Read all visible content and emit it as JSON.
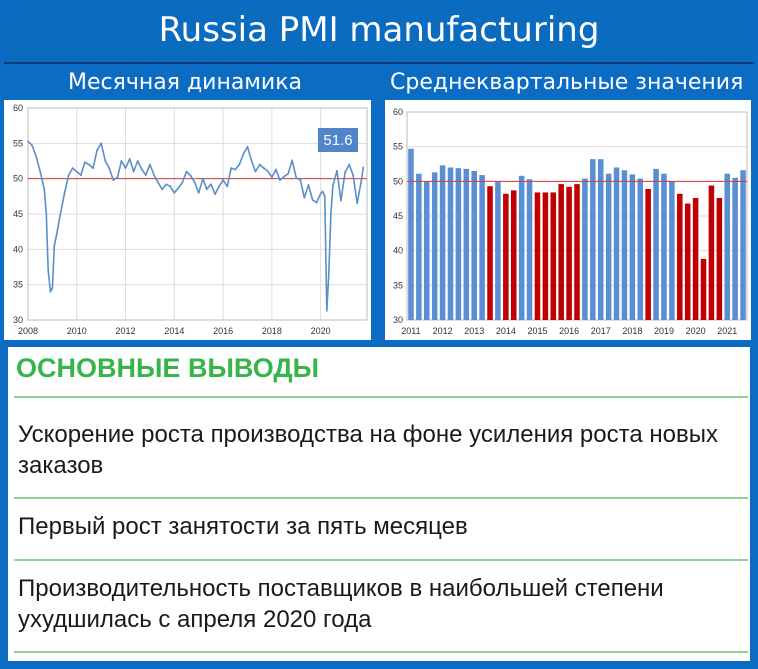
{
  "header": {
    "title": "Russia PMI manufacturing",
    "left_subtitle": "Месячная динамика",
    "right_subtitle": "Среднеквартальные значения"
  },
  "colors": {
    "line": "#5a8fc8",
    "reference_line": "#d43b3b",
    "bar_above_50": "#5b8fd4",
    "bar_below_50": "#c00000",
    "label_box": "#4f86c9",
    "heading": "#37b44a"
  },
  "chart_data": [
    {
      "type": "line",
      "title": "",
      "xlabel": "",
      "ylabel": "",
      "xlim": [
        2008,
        2021.9
      ],
      "ylim": [
        30,
        60
      ],
      "x_ticks": [
        "2008",
        "2010",
        "2012",
        "2014",
        "2016",
        "2018",
        "2020"
      ],
      "y_ticks": [
        "30",
        "35",
        "40",
        "45",
        "50",
        "55",
        "60"
      ],
      "reference_line": 50,
      "last_value_label": "51.6",
      "grid": true,
      "x": [
        2008.0,
        2008.17,
        2008.33,
        2008.5,
        2008.67,
        2008.75,
        2008.83,
        2008.92,
        2009.0,
        2009.08,
        2009.17,
        2009.33,
        2009.5,
        2009.67,
        2009.83,
        2010.0,
        2010.17,
        2010.33,
        2010.5,
        2010.67,
        2010.83,
        2011.0,
        2011.17,
        2011.33,
        2011.5,
        2011.67,
        2011.83,
        2012.0,
        2012.17,
        2012.33,
        2012.5,
        2012.67,
        2012.83,
        2013.0,
        2013.17,
        2013.33,
        2013.5,
        2013.67,
        2013.83,
        2014.0,
        2014.17,
        2014.33,
        2014.5,
        2014.67,
        2014.83,
        2015.0,
        2015.17,
        2015.33,
        2015.5,
        2015.67,
        2015.83,
        2016.0,
        2016.17,
        2016.33,
        2016.5,
        2016.67,
        2016.83,
        2017.0,
        2017.17,
        2017.33,
        2017.5,
        2017.67,
        2017.83,
        2018.0,
        2018.17,
        2018.33,
        2018.5,
        2018.67,
        2018.83,
        2019.0,
        2019.17,
        2019.33,
        2019.5,
        2019.67,
        2019.83,
        2020.0,
        2020.08,
        2020.17,
        2020.25,
        2020.33,
        2020.42,
        2020.5,
        2020.67,
        2020.83,
        2021.0,
        2021.17,
        2021.33,
        2021.5,
        2021.67,
        2021.75
      ],
      "values": [
        55.3,
        54.7,
        53.2,
        51.0,
        48.5,
        45.0,
        37.0,
        34.0,
        34.5,
        40.5,
        42.0,
        45.0,
        48.0,
        50.5,
        51.5,
        51.0,
        50.5,
        52.3,
        52.0,
        51.5,
        54.0,
        55.0,
        52.5,
        51.5,
        49.8,
        50.2,
        52.5,
        51.5,
        52.8,
        51.0,
        52.5,
        51.3,
        50.5,
        52.0,
        50.5,
        49.5,
        48.5,
        49.2,
        48.9,
        48.0,
        48.7,
        49.5,
        51.0,
        50.4,
        49.5,
        48.0,
        50.0,
        48.5,
        49.2,
        47.8,
        48.9,
        49.8,
        48.9,
        51.5,
        51.3,
        52.0,
        53.5,
        54.5,
        52.5,
        51.0,
        52.0,
        51.5,
        51.1,
        50.2,
        51.3,
        49.8,
        50.3,
        50.7,
        52.6,
        50.1,
        49.8,
        47.3,
        49.1,
        47.0,
        46.6,
        47.9,
        48.2,
        47.5,
        31.3,
        36.2,
        45.0,
        49.0,
        51.1,
        46.9,
        50.9,
        52.0,
        50.5,
        46.5,
        49.8,
        51.6
      ]
    },
    {
      "type": "bar",
      "title": "",
      "xlabel": "",
      "ylabel": "",
      "ylim": [
        30,
        60
      ],
      "y_ticks": [
        "30",
        "35",
        "40",
        "45",
        "50",
        "55",
        "60"
      ],
      "x_ticks": [
        "2011",
        "2012",
        "2013",
        "2014",
        "2015",
        "2016",
        "2017",
        "2018",
        "2019",
        "2020",
        "2021"
      ],
      "reference_line": 50,
      "grid": true,
      "categories": [
        "2011 Q1",
        "2011 Q2",
        "2011 Q3",
        "2011 Q4",
        "2012 Q1",
        "2012 Q2",
        "2012 Q3",
        "2012 Q4",
        "2013 Q1",
        "2013 Q2",
        "2013 Q3",
        "2013 Q4",
        "2014 Q1",
        "2014 Q2",
        "2014 Q3",
        "2014 Q4",
        "2015 Q1",
        "2015 Q2",
        "2015 Q3",
        "2015 Q4",
        "2016 Q1",
        "2016 Q2",
        "2016 Q3",
        "2016 Q4",
        "2017 Q1",
        "2017 Q2",
        "2017 Q3",
        "2017 Q4",
        "2018 Q1",
        "2018 Q2",
        "2018 Q3",
        "2018 Q4",
        "2019 Q1",
        "2019 Q2",
        "2019 Q3",
        "2019 Q4",
        "2020 Q1",
        "2020 Q2",
        "2020 Q3",
        "2020 Q4",
        "2021 Q1",
        "2021 Q2",
        "2021 Q3"
      ],
      "values": [
        54.7,
        51.1,
        50.0,
        51.3,
        52.3,
        52.0,
        51.9,
        51.8,
        51.5,
        50.9,
        49.3,
        50.0,
        48.2,
        48.7,
        50.8,
        50.3,
        48.4,
        48.4,
        48.4,
        49.6,
        49.2,
        49.6,
        50.4,
        53.2,
        53.2,
        51.1,
        52.0,
        51.6,
        51.0,
        50.4,
        48.9,
        51.8,
        51.1,
        50.0,
        48.2,
        46.8,
        47.6,
        38.8,
        49.4,
        47.6,
        51.1,
        50.5,
        51.6
      ]
    }
  ],
  "conclusions": {
    "heading": "ОСНОВНЫЕ ВЫВОДЫ",
    "points": [
      "Ускорение роста производства на фоне усиления роста новых заказов",
      "Первый рост занятости за пять месяцев",
      "Производительность поставщиков в наибольшей степени ухудшилась с апреля 2020 года"
    ]
  }
}
